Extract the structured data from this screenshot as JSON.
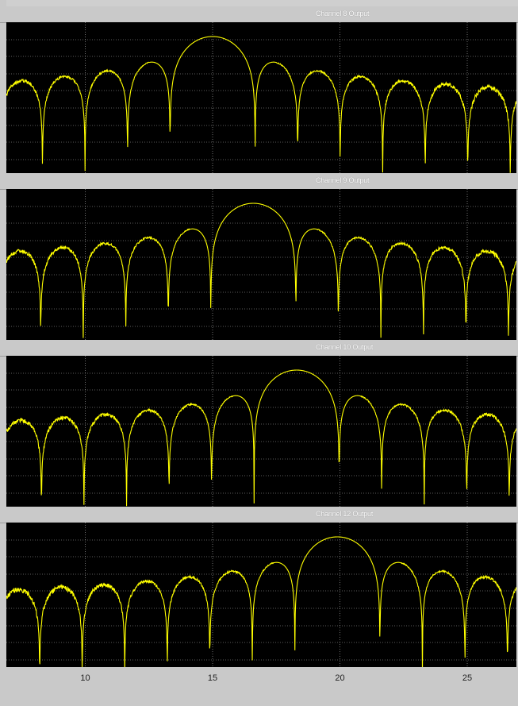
{
  "chart_data": [
    {
      "type": "line",
      "title": "Channel 8 Output",
      "peak_x": 15.0,
      "xlim": [
        6.9,
        26.9
      ],
      "null_spacing": 1.67
    },
    {
      "type": "line",
      "title": "Channel 9 Output",
      "peak_x": 16.6,
      "xlim": [
        6.9,
        26.9
      ],
      "null_spacing": 1.67
    },
    {
      "type": "line",
      "title": "Channel 10 Output",
      "peak_x": 18.3,
      "xlim": [
        6.9,
        26.9
      ],
      "null_spacing": 1.67
    },
    {
      "type": "line",
      "title": "Channel 12 Output",
      "peak_x": 19.9,
      "xlim": [
        6.9,
        26.9
      ],
      "null_spacing": 1.67
    }
  ],
  "x_ticks": [
    "10",
    "15",
    "20",
    "25"
  ],
  "x_tick_values": [
    10,
    15,
    20,
    25
  ],
  "colors": {
    "trace": "#ffff00",
    "grid": "#b8b8b8",
    "plot_bg": "#000000",
    "panel": "#c9c9c9"
  }
}
